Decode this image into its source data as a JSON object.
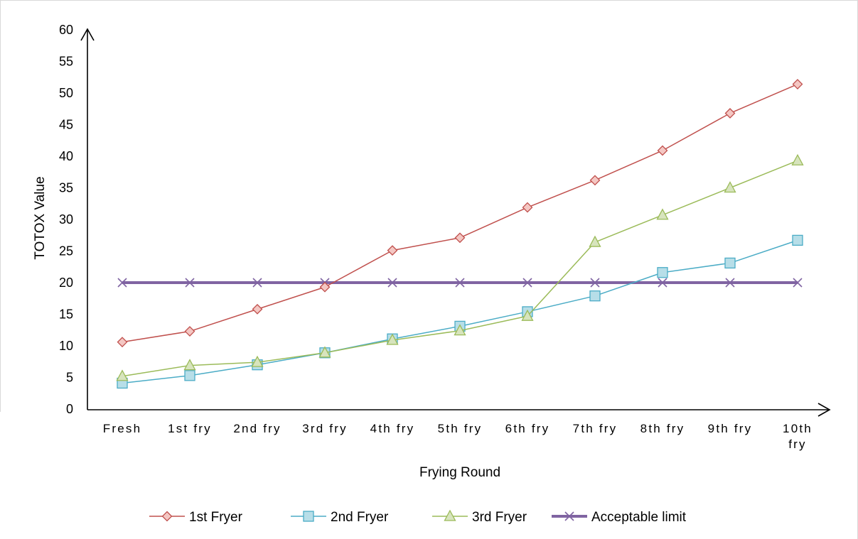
{
  "chart_data": {
    "type": "line",
    "xlabel": "Frying Round",
    "ylabel": "TOTOX Value",
    "ylim": [
      0,
      60
    ],
    "yticks": [
      0,
      5,
      10,
      15,
      20,
      25,
      30,
      35,
      40,
      45,
      50,
      55,
      60
    ],
    "categories": [
      "Fresh",
      "1st fry",
      "2nd fry",
      "3rd fry",
      "4th fry",
      "5th fry",
      "6th fry",
      "7th fry",
      "8th fry",
      "9th fry",
      "10th fry"
    ],
    "grid": false,
    "legend_position": "bottom",
    "series": [
      {
        "name": "1st Fryer",
        "color": "#c0504d",
        "marker": "diamond",
        "marker_fill": "#f4c7c3",
        "values": [
          10.6,
          12.3,
          15.8,
          19.3,
          25.1,
          27.1,
          31.9,
          36.2,
          40.9,
          46.8,
          51.4
        ]
      },
      {
        "name": "2nd Fryer",
        "color": "#4bacc6",
        "marker": "square",
        "marker_fill": "#b7dee8",
        "values": [
          4.1,
          5.3,
          7.0,
          8.9,
          11.1,
          13.1,
          15.4,
          17.9,
          21.6,
          23.1,
          26.7
        ]
      },
      {
        "name": "3rd Fryer",
        "color": "#9bbb59",
        "marker": "triangle",
        "marker_fill": "#d7e4bd",
        "values": [
          5.2,
          6.9,
          7.4,
          8.9,
          10.9,
          12.4,
          14.7,
          26.4,
          30.7,
          35.0,
          39.3
        ]
      },
      {
        "name": "Acceptable limit",
        "color": "#8064a2",
        "marker": "x",
        "marker_fill": "none",
        "values": [
          20,
          20,
          20,
          20,
          20,
          20,
          20,
          20,
          20,
          20,
          20
        ]
      }
    ]
  }
}
